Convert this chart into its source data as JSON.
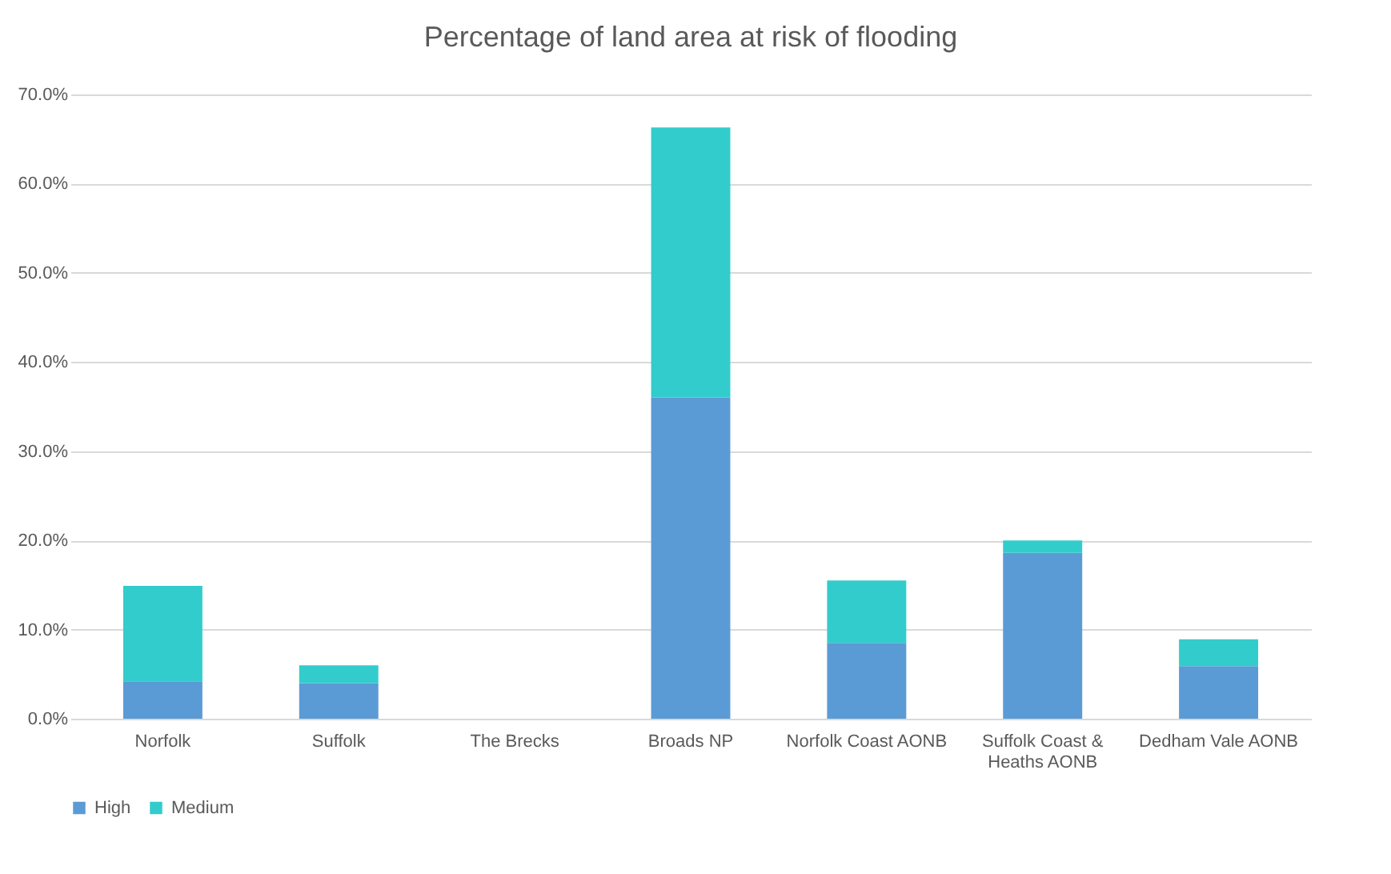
{
  "chart_data": {
    "type": "bar",
    "title": "Percentage of land area at risk of flooding",
    "categories": [
      "Norfolk",
      "Suffolk",
      "The Brecks",
      "Broads NP",
      "Norfolk Coast AONB",
      "Suffolk Coast & Heaths AONB",
      "Dedham Vale AONB"
    ],
    "series": [
      {
        "name": "High",
        "color": "#5b9bd5",
        "values": [
          4.2,
          4.0,
          0,
          36.0,
          8.5,
          18.6,
          5.9
        ]
      },
      {
        "name": "Medium",
        "color": "#33cccc",
        "values": [
          10.7,
          2.0,
          0,
          30.3,
          7.0,
          1.4,
          3.0
        ]
      }
    ],
    "stacked": true,
    "ylim": [
      0,
      70
    ],
    "yticks": [
      {
        "value": 0,
        "label": "0.0%"
      },
      {
        "value": 10,
        "label": "10.0%"
      },
      {
        "value": 20,
        "label": "20.0%"
      },
      {
        "value": 30,
        "label": "30.0%"
      },
      {
        "value": 40,
        "label": "40.0%"
      },
      {
        "value": 50,
        "label": "50.0%"
      },
      {
        "value": 60,
        "label": "60.0%"
      },
      {
        "value": 70,
        "label": "70.0%"
      }
    ],
    "grid": "y",
    "legend": "bottom"
  }
}
